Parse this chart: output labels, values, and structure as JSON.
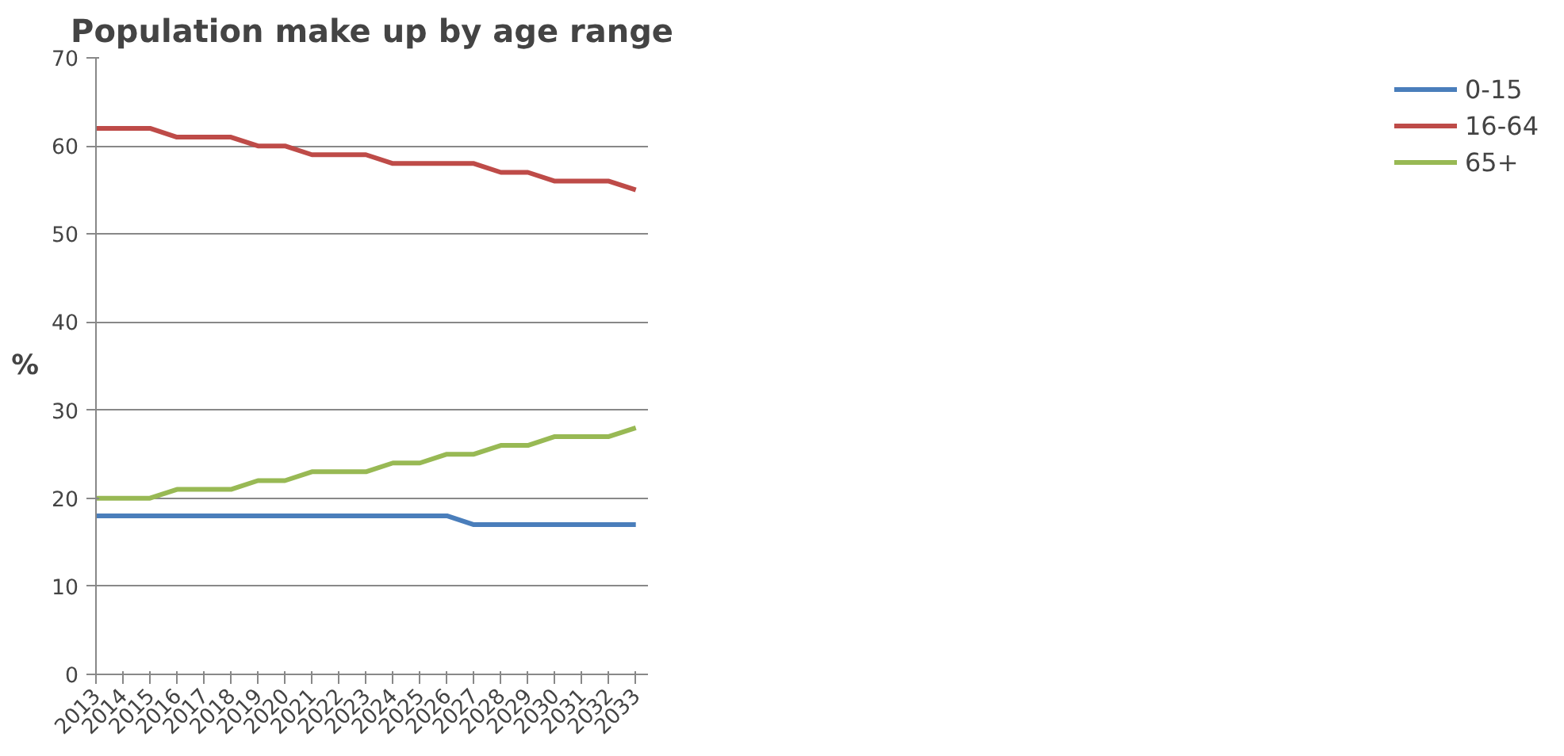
{
  "chart_data": {
    "type": "line",
    "title": "Population make up by age range",
    "ylabel": "%",
    "categories": [
      "2013",
      "2014",
      "2015",
      "2016",
      "2017",
      "2018",
      "2019",
      "2020",
      "2021",
      "2022",
      "2023",
      "2024",
      "2025",
      "2026",
      "2027",
      "2028",
      "2029",
      "2030",
      "2031",
      "2032",
      "2033"
    ],
    "series": [
      {
        "name": "0-15",
        "color": "#4a7ebb",
        "values": [
          18,
          18,
          18,
          18,
          18,
          18,
          18,
          18,
          18,
          18,
          18,
          18,
          18,
          18,
          17,
          17,
          17,
          17,
          17,
          17,
          17
        ]
      },
      {
        "name": "16-64",
        "color": "#be4b48",
        "values": [
          62,
          62,
          62,
          61,
          61,
          61,
          60,
          60,
          59,
          59,
          59,
          58,
          58,
          58,
          58,
          57,
          57,
          56,
          56,
          56,
          55
        ]
      },
      {
        "name": "65+",
        "color": "#98b954",
        "values": [
          20,
          20,
          20,
          21,
          21,
          21,
          22,
          22,
          23,
          23,
          23,
          24,
          24,
          25,
          25,
          26,
          26,
          27,
          27,
          27,
          28
        ]
      }
    ],
    "ylim": [
      0,
      70
    ],
    "yticks": [
      0,
      10,
      20,
      30,
      40,
      50,
      60,
      70
    ],
    "grid": "y",
    "legend": "right",
    "marker": "none",
    "line_style": "solid"
  }
}
